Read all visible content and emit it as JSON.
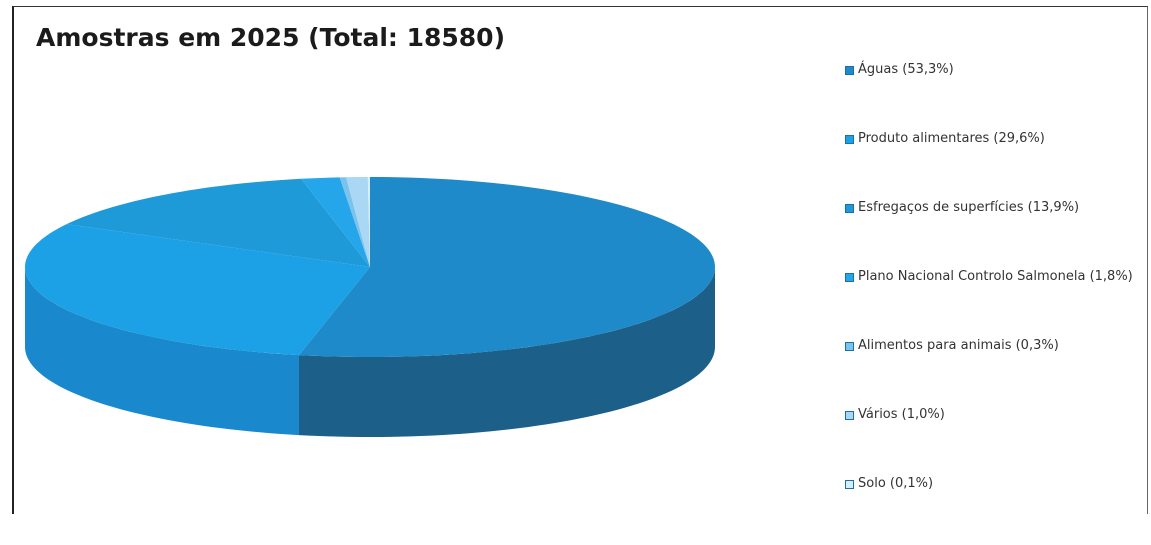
{
  "chart_data": {
    "type": "pie",
    "title": "Amostras em 2025 (Total: 18580)",
    "legend_position": "right",
    "slices": [
      {
        "label": "Águas (53,3%)",
        "value": 53.3,
        "color": "#1f8ac9",
        "side_color": "#1c5f88"
      },
      {
        "label": "Produto alimentares (29,6%)",
        "value": 29.6,
        "color": "#1ca0e6",
        "side_color": "#1a88cc"
      },
      {
        "label": "Esfregaços de superfícies (13,9%)",
        "value": 13.9,
        "color": "#1e9ad8",
        "side_color": "#1a83c0"
      },
      {
        "label": "Plano Nacional Controlo Salmonela (1,8%)",
        "value": 1.8,
        "color": "#26a6ea",
        "side_color": "#1f8fd0"
      },
      {
        "label": "Alimentos para animais (0,3%)",
        "value": 0.3,
        "color": "#7cc3ec",
        "side_color": "#5fb0e0"
      },
      {
        "label": "Vários (1,0%)",
        "value": 1.0,
        "color": "#aad8f4",
        "side_color": "#8ec8ec"
      },
      {
        "label": "Solo (0,1%)",
        "value": 0.1,
        "color": "#d6eefb",
        "side_color": "#bfe2f6"
      }
    ]
  }
}
